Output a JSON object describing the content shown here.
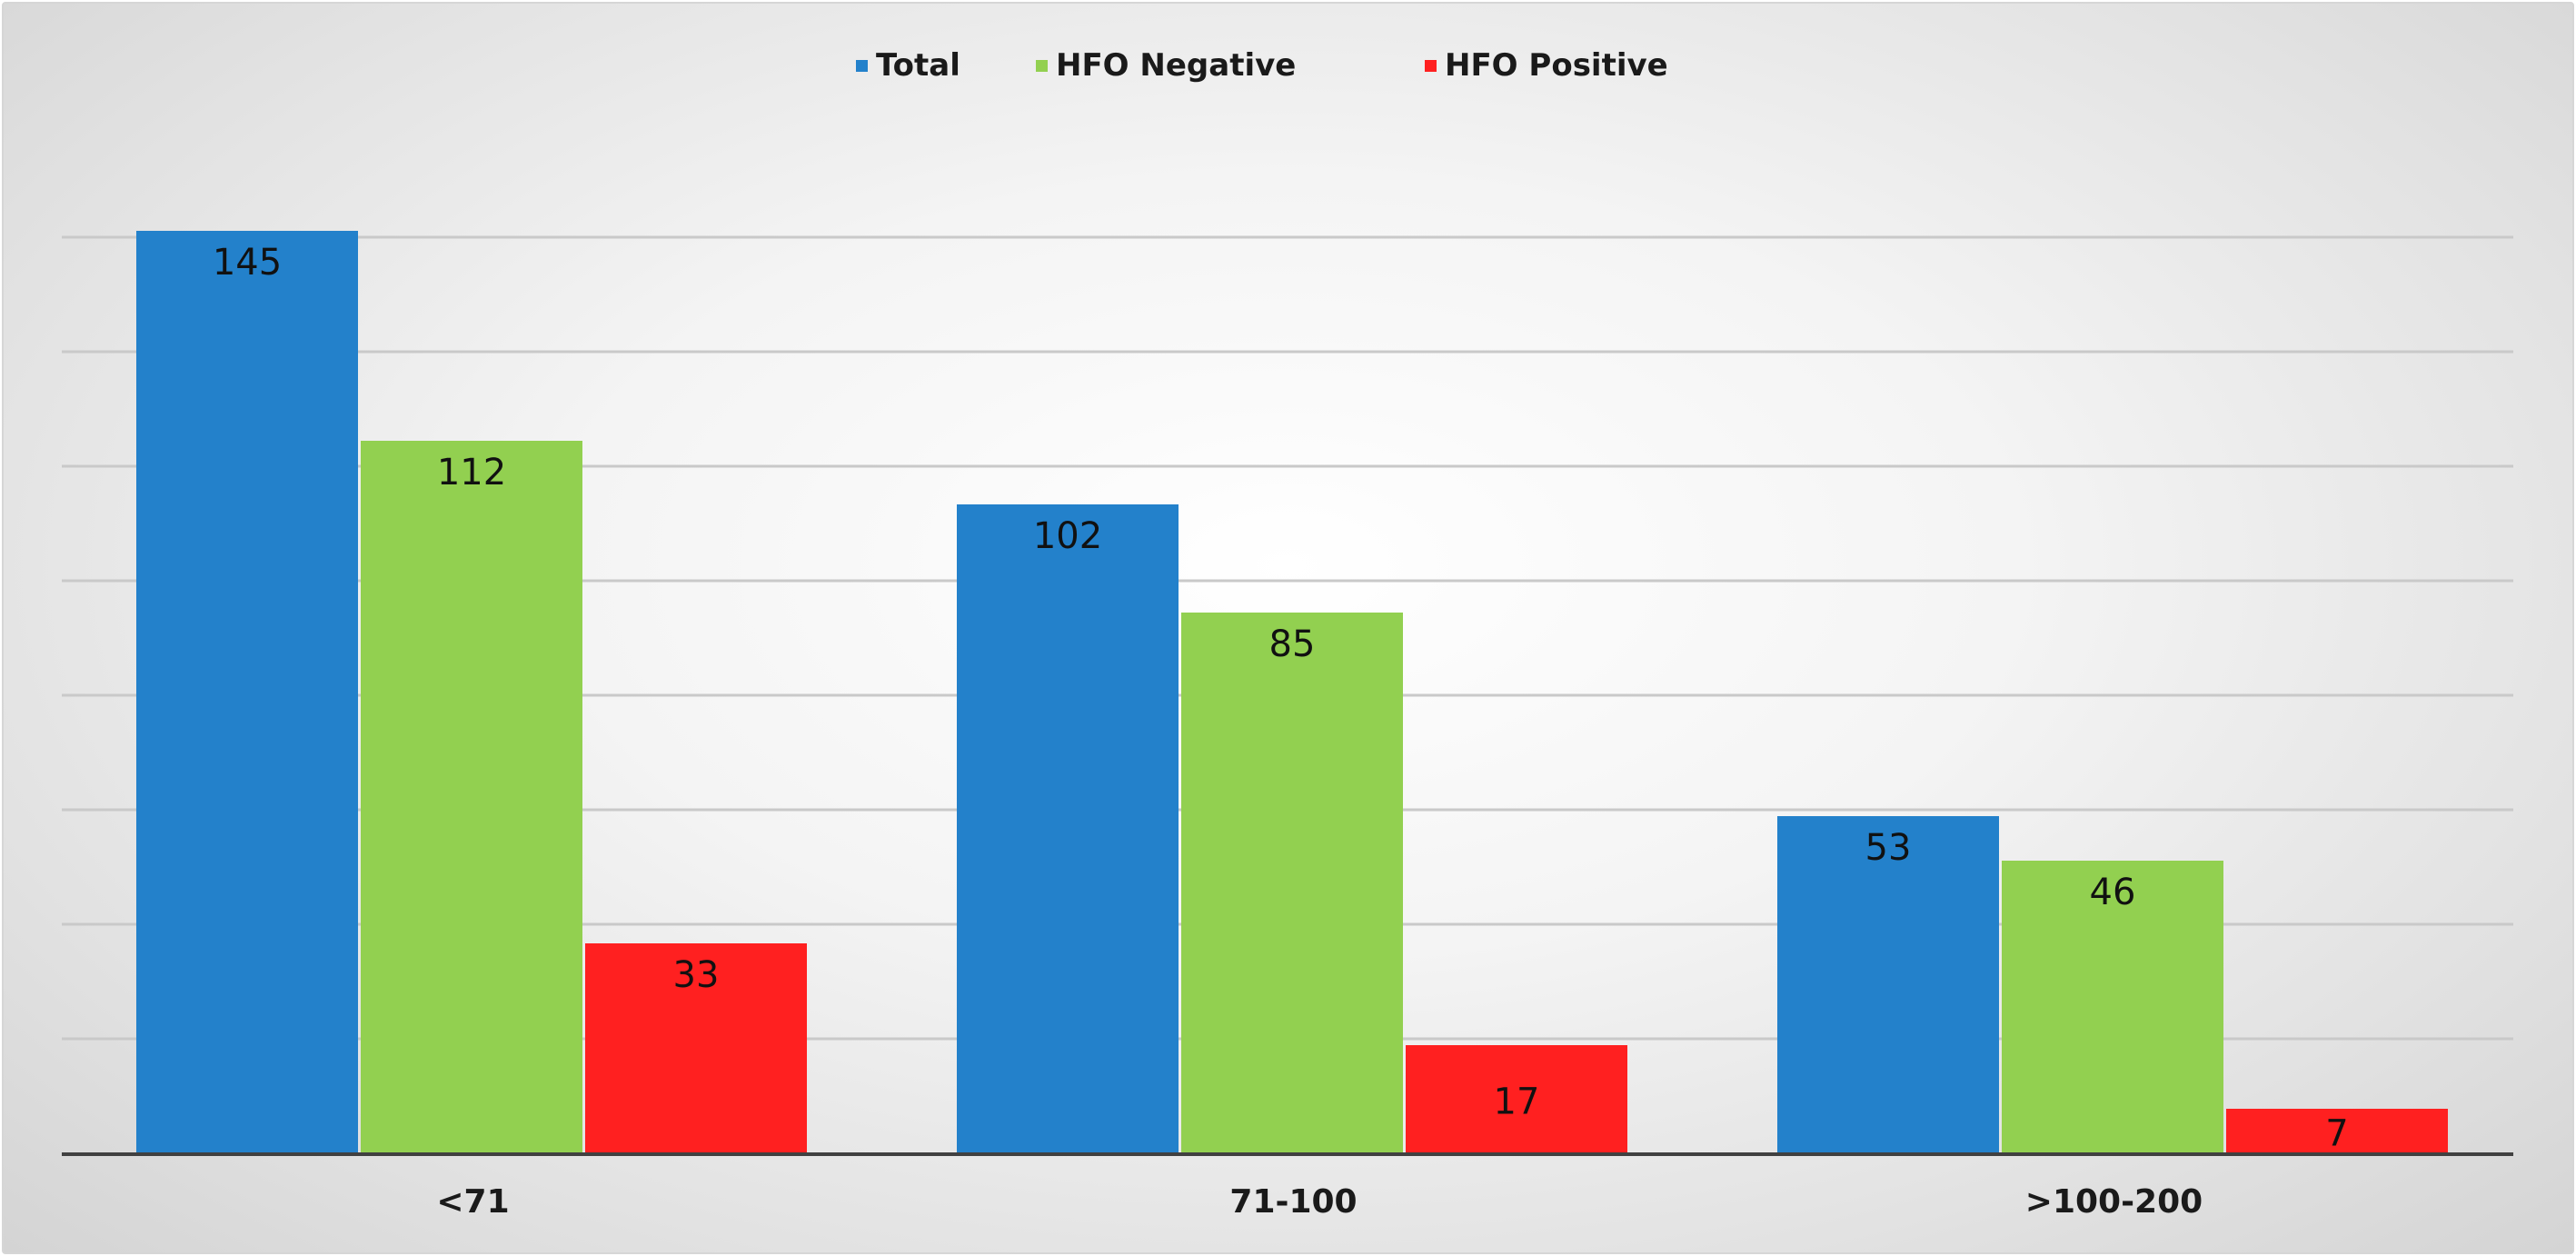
{
  "chart_data": {
    "type": "bar",
    "categories": [
      "<71",
      "71-100",
      ">100-200"
    ],
    "series": [
      {
        "name": "Total",
        "values": [
          145,
          102,
          53
        ],
        "color": "#2381cb"
      },
      {
        "name": "HFO Negative",
        "values": [
          112,
          85,
          46
        ],
        "color": "#92d050"
      },
      {
        "name": "HFO Positive",
        "values": [
          33,
          17,
          7
        ],
        "color": "#ff2020"
      }
    ],
    "ylim": [
      0,
      160
    ],
    "grid": true,
    "legend_position": "top-center",
    "axis_color": "#404040",
    "grid_color": "#c9c9c9"
  }
}
